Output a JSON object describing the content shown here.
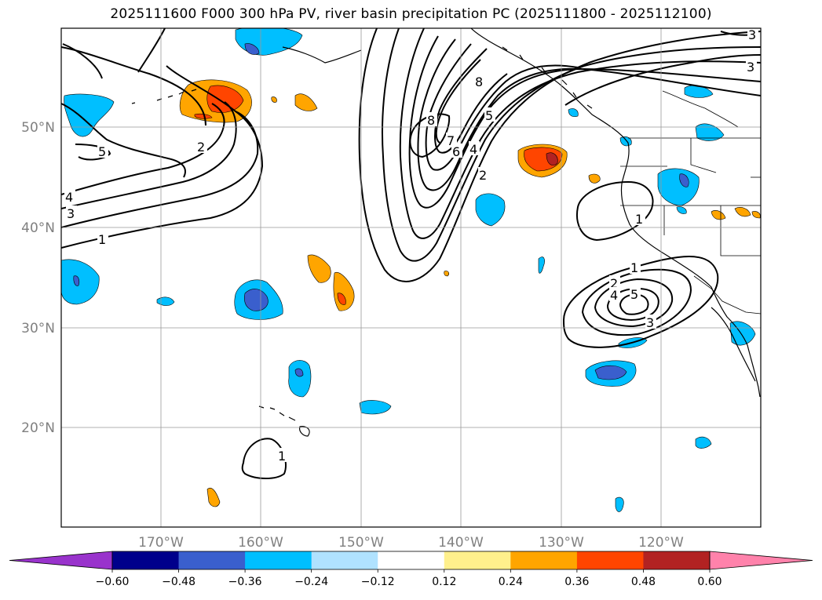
{
  "title": "2025111600 F000 300 hPa PV, river basin precipitation PC (2025111800 - 2025112100)",
  "lat_labels": [
    "50°N",
    "40°N",
    "30°N",
    "20°N"
  ],
  "lon_labels": [
    "170°W",
    "160°W",
    "150°W",
    "140°W",
    "130°W",
    "120°W"
  ],
  "colorbar": {
    "colors": [
      "#9933cc",
      "#00008b",
      "#3a5fcd",
      "#00bfff",
      "#b0e2ff",
      "#ffffff",
      "#fff08c",
      "#ffa500",
      "#ff4500",
      "#b22222",
      "#ff82ab"
    ],
    "tick_labels": [
      "−0.60",
      "−0.48",
      "−0.36",
      "−0.24",
      "−0.12",
      "0.12",
      "0.24",
      "0.36",
      "0.48",
      "0.60"
    ]
  },
  "contour_labels": [
    "5",
    "4",
    "3",
    "1",
    "2",
    "8",
    "8",
    "7",
    "6",
    "5",
    "4",
    "2",
    "3",
    "3",
    "1",
    "1",
    "2",
    "4",
    "5",
    "3",
    "1"
  ]
}
